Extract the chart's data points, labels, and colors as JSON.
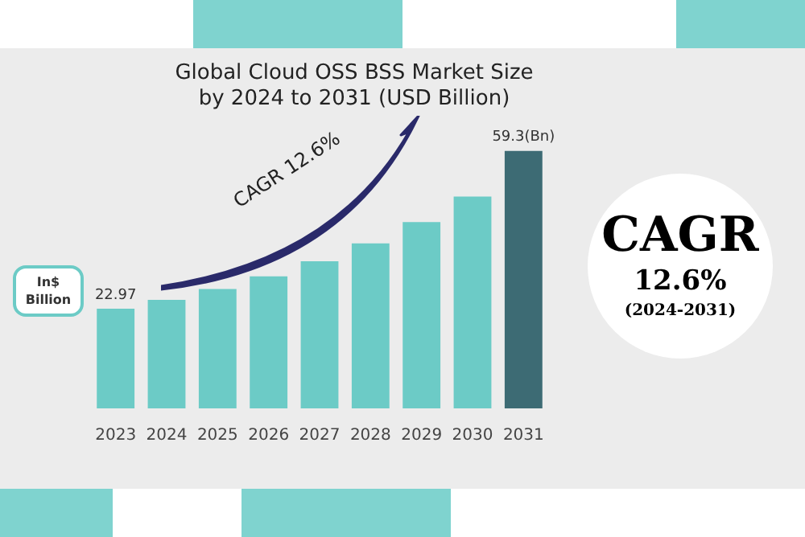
{
  "chart_data": {
    "type": "bar",
    "title": "Global Cloud OSS BSS Market Size by 2024 to 2031 (USD Billion)",
    "ylabel": "In$ Billion",
    "categories": [
      "2023",
      "2024",
      "2025",
      "2026",
      "2027",
      "2028",
      "2029",
      "2030",
      "2031"
    ],
    "values": [
      22.97,
      25.0,
      27.5,
      30.4,
      33.9,
      38.0,
      42.9,
      48.8,
      59.3
    ],
    "value_labels": [
      "22.97",
      null,
      null,
      null,
      null,
      null,
      null,
      null,
      "59.3(Bn)"
    ],
    "colors": [
      "#6ccbc6",
      "#6ccbc6",
      "#6ccbc6",
      "#6ccbc6",
      "#6ccbc6",
      "#6ccbc6",
      "#6ccbc6",
      "#6ccbc6",
      "#3d6b74"
    ],
    "annotations": [
      "CAGR 12.6%",
      "CAGR",
      "12.6%",
      "(2024-2031)"
    ],
    "grid": false,
    "legend": false
  }
}
